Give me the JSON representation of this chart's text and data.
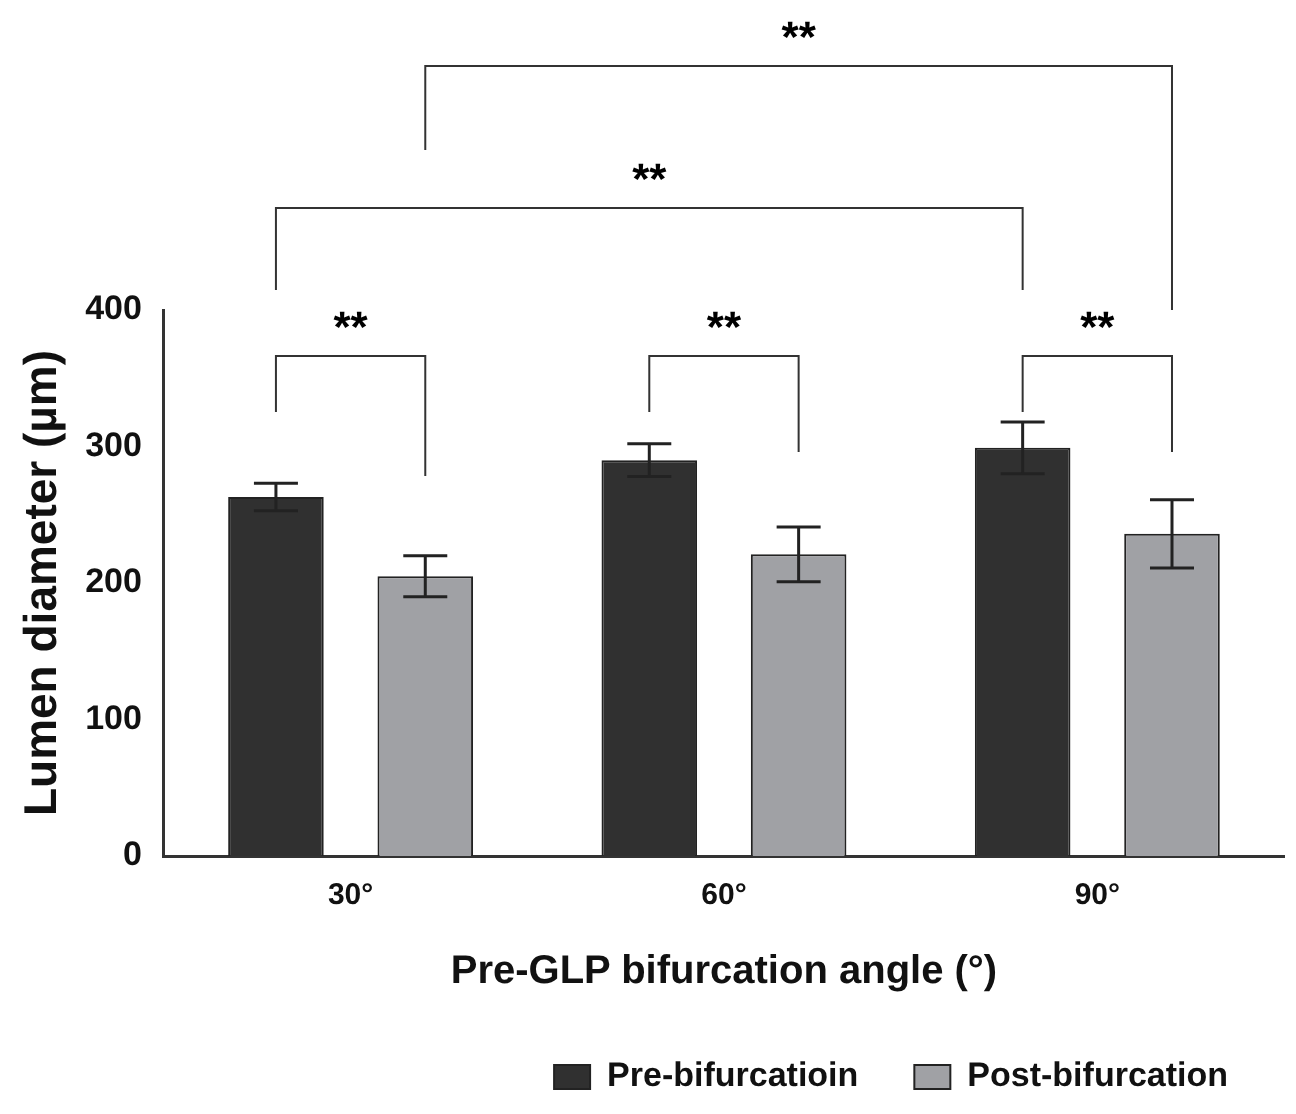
{
  "chart_data": {
    "type": "bar",
    "xlabel": "Pre-GLP bifurcation angle (°)",
    "ylabel": "Lumen diameter (µm)",
    "categories": [
      "30°",
      "60°",
      "90°"
    ],
    "series": [
      {
        "name": "Pre-bifurcatioin",
        "color": "#303030",
        "values": [
          263,
          290,
          299
        ],
        "errors": [
          10,
          12,
          19
        ]
      },
      {
        "name": "Post-bifurcation",
        "color": "#a0a1a5",
        "values": [
          205,
          221,
          236
        ],
        "errors": [
          15,
          20,
          25
        ]
      }
    ],
    "ylim": [
      0,
      400
    ],
    "yticks": [
      0,
      100,
      200,
      300,
      400
    ],
    "grid": false,
    "legend": "bottom",
    "annotations": [
      "**",
      "**",
      "**",
      "**",
      "**"
    ]
  }
}
